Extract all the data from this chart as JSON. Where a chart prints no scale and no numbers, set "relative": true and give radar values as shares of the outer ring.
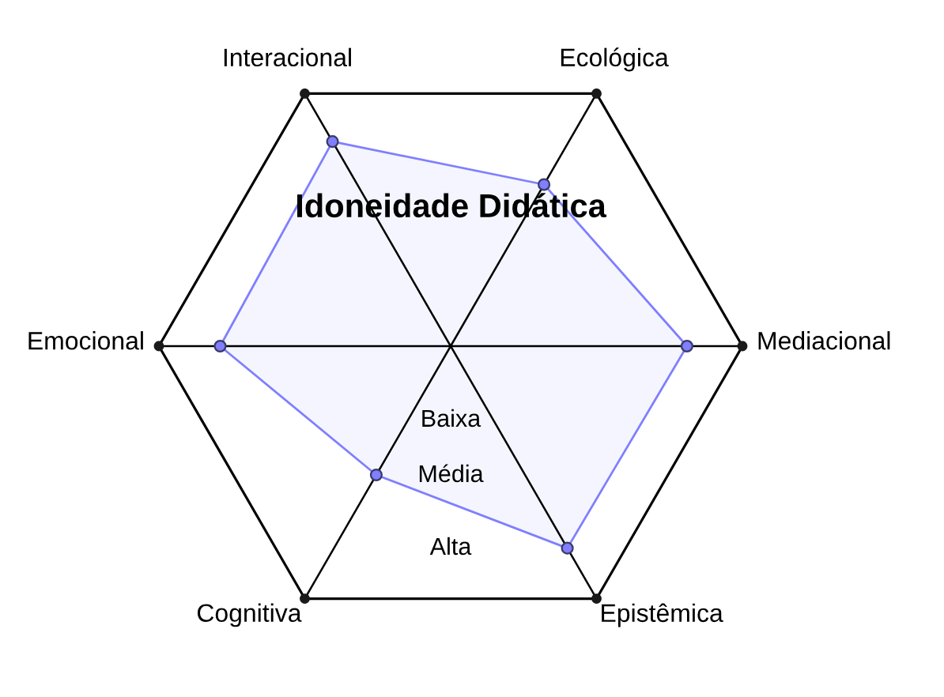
{
  "chart_data": {
    "type": "radar",
    "title": "Idoneidade Didática",
    "categories": [
      "Ecológica",
      "Mediacional",
      "Epistêmica",
      "Cognitiva",
      "Emocional",
      "Interacional"
    ],
    "relative": true,
    "series": [
      {
        "color": "#7f7fff",
        "values": [
          0.64,
          0.81,
          0.8,
          0.51,
          0.79,
          0.81
        ]
      }
    ],
    "marker": "circle",
    "grid": true,
    "annotations": [
      "Baixa",
      "Média",
      "Alta"
    ]
  }
}
